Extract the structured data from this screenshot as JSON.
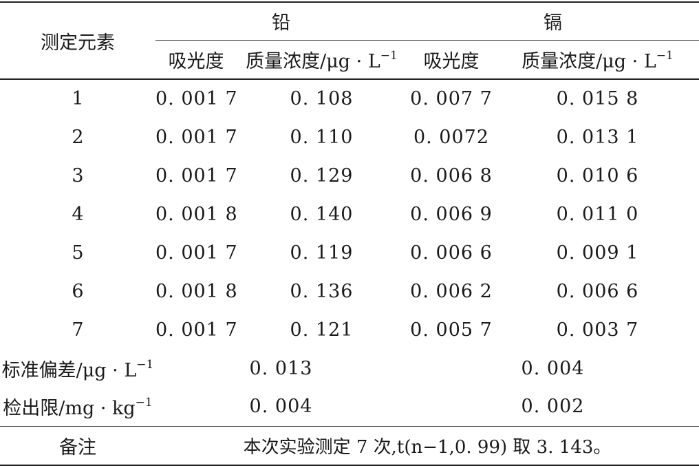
{
  "table": {
    "row_header": "测定元素",
    "groups": [
      "铅",
      "镉"
    ],
    "subheaders": {
      "absorbance": "吸光度",
      "concentration_prefix": "质量浓度/μg · L",
      "concentration_sup": "−1"
    },
    "rows": [
      {
        "no": "1",
        "pb_abs": "0. 001 7",
        "pb_conc": "0. 108",
        "cd_abs": "0. 007 7",
        "cd_conc": "0. 015 8"
      },
      {
        "no": "2",
        "pb_abs": "0. 001 7",
        "pb_conc": "0. 110",
        "cd_abs": "0. 0072",
        "cd_conc": "0. 013 1"
      },
      {
        "no": "3",
        "pb_abs": "0. 001 7",
        "pb_conc": "0. 129",
        "cd_abs": "0. 006 8",
        "cd_conc": "0. 010 6"
      },
      {
        "no": "4",
        "pb_abs": "0. 001 8",
        "pb_conc": "0. 140",
        "cd_abs": "0. 006 9",
        "cd_conc": "0. 011 0"
      },
      {
        "no": "5",
        "pb_abs": "0. 001 7",
        "pb_conc": "0. 119",
        "cd_abs": "0. 006 6",
        "cd_conc": "0. 009 1"
      },
      {
        "no": "6",
        "pb_abs": "0. 001 8",
        "pb_conc": "0. 136",
        "cd_abs": "0. 006 2",
        "cd_conc": "0. 006 6"
      },
      {
        "no": "7",
        "pb_abs": "0. 001 7",
        "pb_conc": "0. 121",
        "cd_abs": "0. 005 7",
        "cd_conc": "0. 003 7"
      }
    ],
    "std_dev": {
      "label": "标准偏差/μg · L",
      "label_sup": "−1",
      "pb": "0. 013",
      "cd": "0. 004"
    },
    "detection_limit": {
      "label": "检出限/mg · kg",
      "label_sup": "−1",
      "pb": "0. 004",
      "cd": "0. 002"
    },
    "remark": {
      "label": "备注",
      "text": "本次实验测定 7 次,t(n−1,0. 99) 取 3. 143。"
    }
  }
}
